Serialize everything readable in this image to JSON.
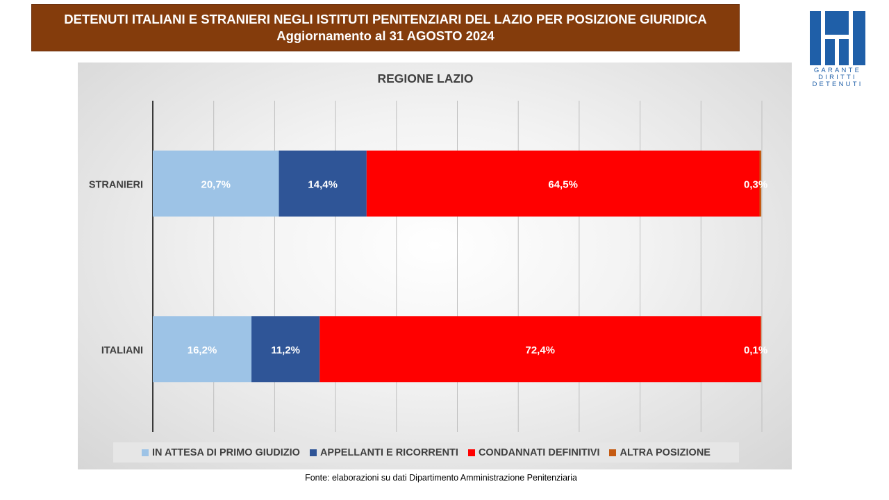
{
  "header": {
    "title_line1": "DETENUTI ITALIANI E STRANIERI NEGLI ISTITUTI PENITENZIARI DEL LAZIO PER POSIZIONE GIURIDICA",
    "title_line2": "Aggiornamento al 31 AGOSTO 2024"
  },
  "logo": {
    "text_line1": "GARANTE",
    "text_line2": "DIRITTI",
    "text_line3": "DETENUTI",
    "color": "#1f5fa8"
  },
  "source": "Fonte: elaborazioni su dati Dipartimento Amministrazione Penitenziaria",
  "chart_data": {
    "type": "bar",
    "orientation": "horizontal",
    "stacked": "percent",
    "title": "REGIONE LAZIO",
    "categories": [
      "STRANIERI",
      "ITALIANI"
    ],
    "xlim": [
      0,
      100
    ],
    "grid": true,
    "legend_position": "bottom",
    "series": [
      {
        "name": "IN ATTESA DI PRIMO GIUDIZIO",
        "color": "#9dc3e6",
        "values": [
          20.7,
          16.2
        ],
        "labels": [
          "20,7%",
          "16,2%"
        ]
      },
      {
        "name": "APPELLANTI E RICORRENTI",
        "color": "#2f5597",
        "values": [
          14.4,
          11.2
        ],
        "labels": [
          "14,4%",
          "11,2%"
        ]
      },
      {
        "name": "CONDANNATI DEFINITIVI",
        "color": "#ff0000",
        "values": [
          64.5,
          72.4
        ],
        "labels": [
          "64,5%",
          "72,4%"
        ]
      },
      {
        "name": "ALTRA POSIZIONE",
        "color": "#c55a11",
        "values": [
          0.3,
          0.1
        ],
        "labels": [
          "0,3%",
          "0,1%"
        ]
      }
    ]
  }
}
